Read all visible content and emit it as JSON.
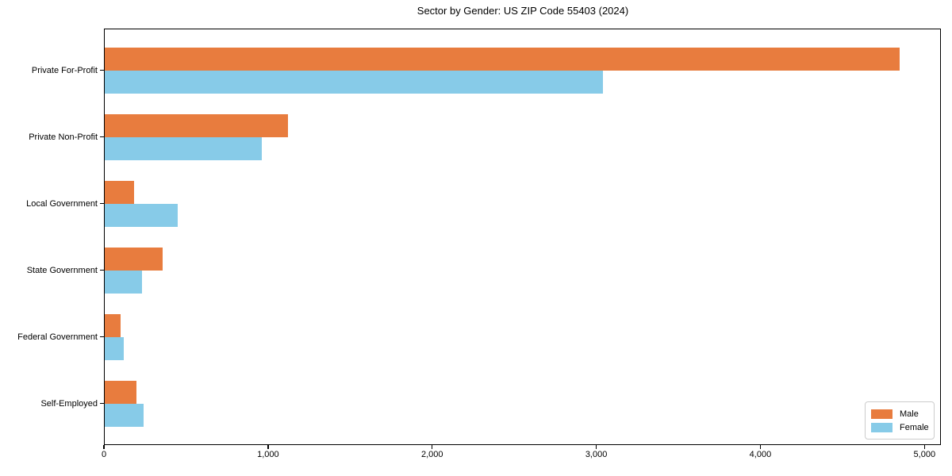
{
  "title": "Sector by Gender: US ZIP Code 55403 (2024)",
  "colors": {
    "male": "#e87c3e",
    "female": "#87cbe8",
    "axis": "#000000",
    "legend_border": "#cccccc",
    "background": "#ffffff"
  },
  "legend": {
    "position": "lower right",
    "items": [
      {
        "label": "Male",
        "color": "#e87c3e"
      },
      {
        "label": "Female",
        "color": "#87cbe8"
      }
    ]
  },
  "chart_data": {
    "type": "bar",
    "orientation": "horizontal",
    "title": "Sector by Gender: US ZIP Code 55403 (2024)",
    "categories": [
      "Private For-Profit",
      "Private Non-Profit",
      "Local Government",
      "State Government",
      "Federal Government",
      "Self-Employed"
    ],
    "series": [
      {
        "name": "Male",
        "color": "#e87c3e",
        "values": [
          4850,
          1120,
          185,
          360,
          100,
          200
        ]
      },
      {
        "name": "Female",
        "color": "#87cbe8",
        "values": [
          3040,
          960,
          450,
          230,
          120,
          240
        ]
      }
    ],
    "xlabel": "",
    "ylabel": "",
    "xlim": [
      0,
      5100
    ],
    "x_ticks": [
      0,
      1000,
      2000,
      3000,
      4000,
      5000
    ],
    "x_tick_labels": [
      "0",
      "1,000",
      "2,000",
      "3,000",
      "4,000",
      "5,000"
    ],
    "grid": false,
    "legend_position": "lower right"
  }
}
